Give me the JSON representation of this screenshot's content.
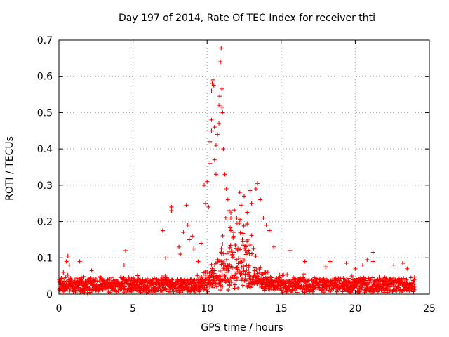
{
  "chart_data": {
    "type": "scatter",
    "title": "Day 197 of 2014, Rate Of TEC Index for receiver thti",
    "xlabel": "GPS time / hours",
    "ylabel": "ROTI / TECUs",
    "xlim": [
      0,
      25
    ],
    "ylim": [
      0,
      0.7
    ],
    "xticks": [
      "0",
      "5",
      "10",
      "15",
      "20",
      "25"
    ],
    "yticks": [
      "0",
      "0.1",
      "0.2",
      "0.3",
      "0.4",
      "0.5",
      "0.6",
      "0.7"
    ],
    "grid": true,
    "marker": "+",
    "series": [
      {
        "name": "ROTI",
        "color": "#ff0000",
        "baseline_range": [
          0.0,
          24.0
        ],
        "baseline_level": 0.035,
        "points": [
          [
            0.3,
            0.06
          ],
          [
            0.5,
            0.09
          ],
          [
            0.6,
            0.105
          ],
          [
            0.7,
            0.08
          ],
          [
            1.4,
            0.09
          ],
          [
            2.2,
            0.065
          ],
          [
            4.5,
            0.12
          ],
          [
            4.4,
            0.08
          ],
          [
            7.0,
            0.175
          ],
          [
            7.2,
            0.1
          ],
          [
            7.6,
            0.24
          ],
          [
            7.6,
            0.23
          ],
          [
            8.1,
            0.13
          ],
          [
            8.2,
            0.11
          ],
          [
            8.4,
            0.17
          ],
          [
            8.6,
            0.245
          ],
          [
            8.7,
            0.19
          ],
          [
            8.8,
            0.15
          ],
          [
            9.0,
            0.16
          ],
          [
            9.1,
            0.125
          ],
          [
            9.4,
            0.09
          ],
          [
            9.6,
            0.14
          ],
          [
            9.8,
            0.3
          ],
          [
            9.9,
            0.25
          ],
          [
            10.0,
            0.31
          ],
          [
            10.1,
            0.24
          ],
          [
            10.2,
            0.36
          ],
          [
            10.2,
            0.42
          ],
          [
            10.3,
            0.45
          ],
          [
            10.3,
            0.48
          ],
          [
            10.3,
            0.56
          ],
          [
            10.35,
            0.58
          ],
          [
            10.4,
            0.59
          ],
          [
            10.45,
            0.575
          ],
          [
            10.5,
            0.46
          ],
          [
            10.5,
            0.37
          ],
          [
            10.6,
            0.41
          ],
          [
            10.6,
            0.33
          ],
          [
            10.7,
            0.44
          ],
          [
            10.8,
            0.47
          ],
          [
            10.8,
            0.52
          ],
          [
            10.85,
            0.545
          ],
          [
            10.9,
            0.64
          ],
          [
            10.95,
            0.678
          ],
          [
            11.0,
            0.565
          ],
          [
            11.0,
            0.515
          ],
          [
            11.05,
            0.5
          ],
          [
            11.1,
            0.4
          ],
          [
            11.2,
            0.33
          ],
          [
            11.3,
            0.29
          ],
          [
            11.4,
            0.26
          ],
          [
            11.5,
            0.23
          ],
          [
            11.6,
            0.21
          ],
          [
            11.8,
            0.17
          ],
          [
            12.0,
            0.21
          ],
          [
            12.2,
            0.28
          ],
          [
            12.3,
            0.245
          ],
          [
            12.5,
            0.27
          ],
          [
            12.7,
            0.225
          ],
          [
            12.9,
            0.285
          ],
          [
            13.0,
            0.25
          ],
          [
            13.3,
            0.29
          ],
          [
            13.4,
            0.305
          ],
          [
            13.6,
            0.26
          ],
          [
            13.8,
            0.21
          ],
          [
            14.0,
            0.19
          ],
          [
            14.2,
            0.175
          ],
          [
            14.5,
            0.13
          ],
          [
            15.6,
            0.12
          ],
          [
            16.6,
            0.09
          ],
          [
            18.0,
            0.075
          ],
          [
            18.3,
            0.09
          ],
          [
            19.4,
            0.085
          ],
          [
            20.0,
            0.07
          ],
          [
            20.5,
            0.08
          ],
          [
            20.8,
            0.095
          ],
          [
            21.2,
            0.115
          ],
          [
            21.2,
            0.09
          ],
          [
            22.6,
            0.08
          ],
          [
            23.2,
            0.085
          ],
          [
            23.5,
            0.07
          ]
        ]
      }
    ]
  }
}
